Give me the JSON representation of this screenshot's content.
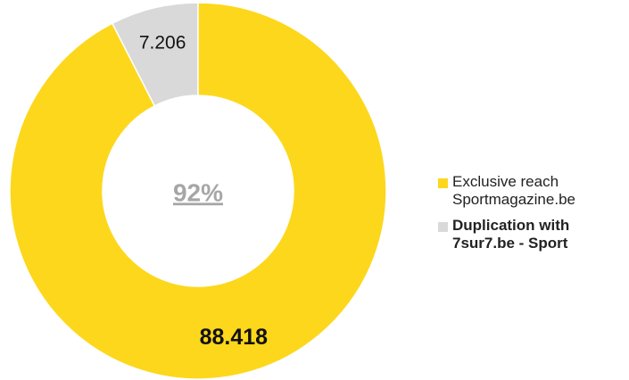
{
  "chart_data": {
    "type": "donut",
    "center_label": "92%",
    "series": [
      {
        "name": "Exclusive reach Sportmagazine.be",
        "color": "#fdd71b"
      },
      {
        "name": "Duplication with 7sur7.be - Sport",
        "color": "#d9d9d9"
      }
    ],
    "values": [
      88418,
      7206
    ],
    "value_labels": [
      "88.418",
      "7.206"
    ]
  }
}
